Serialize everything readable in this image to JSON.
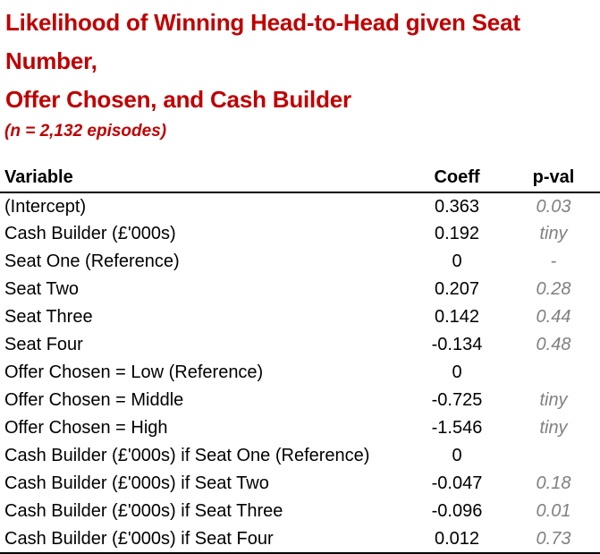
{
  "title": {
    "line1": "Likelihood of Winning Head-to-Head given Seat Number,",
    "line2": "Offer Chosen, and Cash Builder",
    "subtitle": "(n = 2,132 episodes)"
  },
  "colors": {
    "title_red": "#C00000",
    "text_black": "#000000",
    "pval_gray": "#808080",
    "rule_black": "#000000"
  },
  "chart_data": {
    "type": "table",
    "title": "Likelihood of Winning Head-to-Head given Seat Number, Offer Chosen, and Cash Builder",
    "subtitle": "(n = 2,132 episodes)",
    "n_episodes": 2132,
    "columns": [
      "Variable",
      "Coeff",
      "p-val"
    ],
    "rows": [
      {
        "variable": "(Intercept)",
        "coeff": "0.363",
        "pval": "0.03"
      },
      {
        "variable": "Cash Builder (£'000s)",
        "coeff": "0.192",
        "pval": "tiny"
      },
      {
        "variable": "Seat One (Reference)",
        "coeff": "0",
        "pval": "-"
      },
      {
        "variable": "Seat Two",
        "coeff": "0.207",
        "pval": "0.28"
      },
      {
        "variable": "Seat Three",
        "coeff": "0.142",
        "pval": "0.44"
      },
      {
        "variable": "Seat Four",
        "coeff": "-0.134",
        "pval": "0.48"
      },
      {
        "variable": "Offer Chosen = Low (Reference)",
        "coeff": "0",
        "pval": ""
      },
      {
        "variable": "Offer Chosen = Middle",
        "coeff": "-0.725",
        "pval": "tiny"
      },
      {
        "variable": "Offer Chosen = High",
        "coeff": "-1.546",
        "pval": "tiny"
      },
      {
        "variable": "Cash Builder (£'000s) if Seat One (Reference)",
        "coeff": "0",
        "pval": ""
      },
      {
        "variable": "Cash Builder (£'000s) if Seat Two",
        "coeff": "-0.047",
        "pval": "0.18"
      },
      {
        "variable": "Cash Builder (£'000s) if Seat Three",
        "coeff": "-0.096",
        "pval": "0.01"
      },
      {
        "variable": "Cash Builder (£'000s) if Seat Four",
        "coeff": "0.012",
        "pval": "0.73"
      }
    ]
  }
}
